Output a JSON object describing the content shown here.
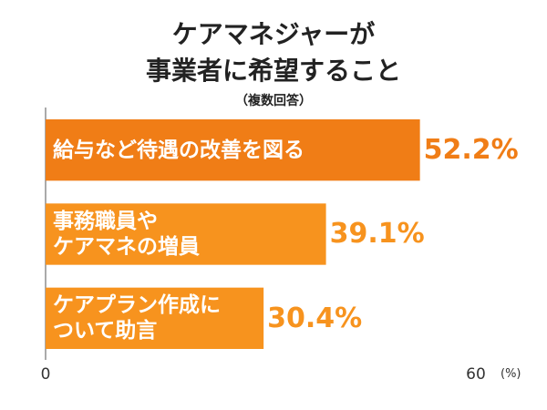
{
  "chart_data": {
    "type": "hbar",
    "title": "ケアマネジャーが\n事業者に希望すること",
    "subtitle": "（複数回答）",
    "categories": [
      "給与など待遇の改善を図る",
      "事務職員や\nケアマネの増員",
      "ケアプラン作成に\nついて助言"
    ],
    "values": [
      52.2,
      39.1,
      30.4
    ],
    "value_labels": [
      "52.2%",
      "39.1%",
      "30.4%"
    ],
    "colors": [
      "#f07d16",
      "#f7931e",
      "#f7931e"
    ],
    "xlim": [
      0,
      60
    ],
    "xticks": [
      0,
      60
    ],
    "x_unit": "(%)"
  }
}
